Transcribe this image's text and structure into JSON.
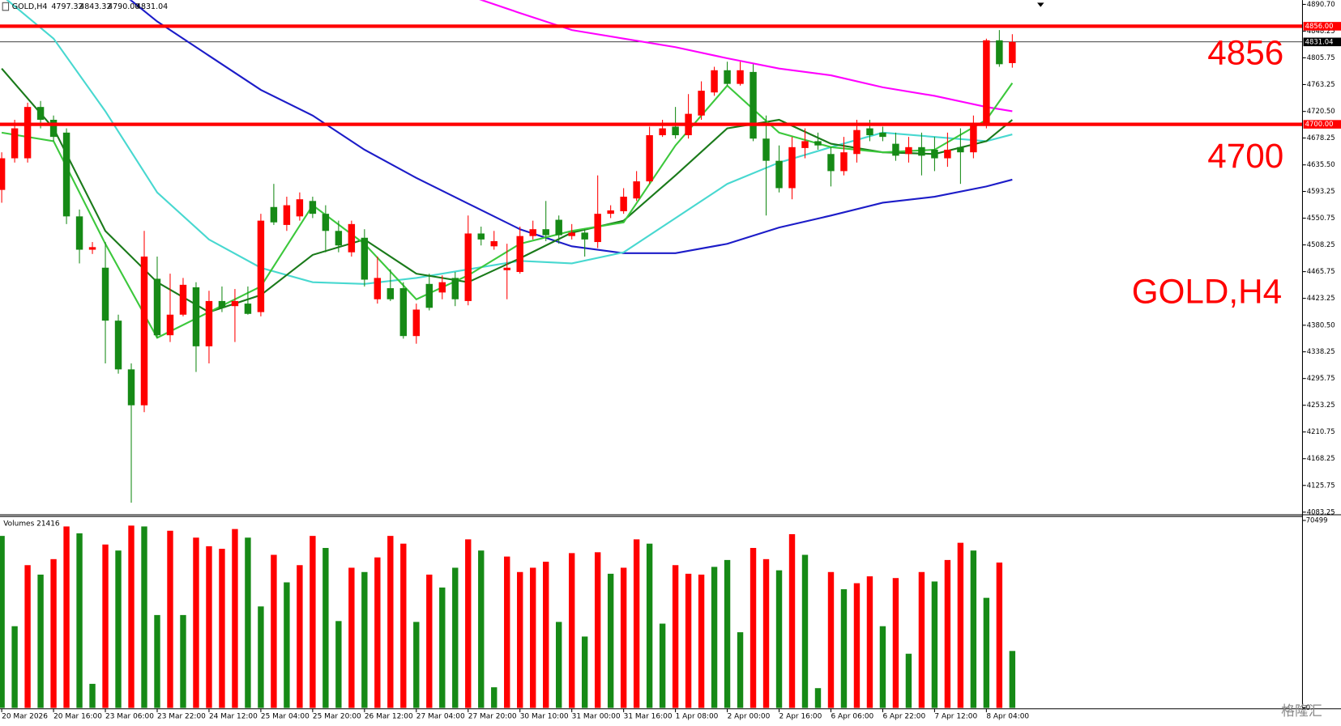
{
  "header": {
    "symbol": "GOLD,H4",
    "ohlc_labels": [
      "4797.32",
      "4843.32",
      "4790.00",
      "4831.04"
    ]
  },
  "chart_data": [
    {
      "type": "candlestick",
      "categories": [
        "20 Mar 2026",
        null,
        null,
        null,
        "20 Mar 16:00",
        null,
        null,
        null,
        "23 Mar 06:00",
        null,
        null,
        null,
        "23 Mar 22:00",
        null,
        null,
        null,
        "24 Mar 12:00",
        null,
        null,
        null,
        "25 Mar 04:00",
        null,
        null,
        null,
        "25 Mar 20:00",
        null,
        null,
        null,
        "26 Mar 12:00",
        null,
        null,
        null,
        "27 Mar 04:00",
        null,
        null,
        null,
        "27 Mar 20:00",
        null,
        null,
        null,
        "30 Mar 10:00",
        null,
        null,
        null,
        "31 Mar 00:00",
        null,
        null,
        null,
        "31 Mar 16:00",
        null,
        null,
        null,
        "1 Apr 08:00",
        null,
        null,
        null,
        "2 Apr 00:00",
        null,
        null,
        null,
        "2 Apr 16:00",
        null,
        null,
        null,
        "6 Apr 06:00",
        null,
        null,
        null,
        "6 Apr 22:00",
        null,
        null,
        null,
        "7 Apr 12:00",
        null,
        null,
        null,
        "8 Apr 04:00",
        null,
        null
      ],
      "open": [
        4595.7,
        4646.0,
        4646.0,
        4727.6,
        4707.2,
        4686.8,
        4553.6,
        4500.6,
        4472.0,
        4387.8,
        4310.3,
        4253.2,
        4454.4,
        4364.6,
        4397.3,
        4440.8,
        4347.0,
        4419.0,
        4410.9,
        4414.9,
        4401.4,
        4568.5,
        4540.0,
        4553.6,
        4578.1,
        4557.7,
        4530.5,
        4496.5,
        4519.6,
        4421.8,
        4439.4,
        4439.4,
        4363.3,
        4446.2,
        4432.6,
        4455.7,
        4419.0,
        4526.4,
        4506.0,
        4468.0,
        4465.2,
        4522.3,
        4533.2,
        4548.2,
        4522.3,
        4527.8,
        4512.8,
        4557.7,
        4561.8,
        4582.1,
        4609.3,
        4682.7,
        4696.3,
        4682.7,
        4714.0,
        4750.7,
        4786.0,
        4764.3,
        4783.3,
        4677.3,
        4642.0,
        4598.5,
        4662.3,
        4673.2,
        4652.8,
        4625.6,
        4652.8,
        4693.6,
        4686.8,
        4669.1,
        4652.8,
        4663.7,
        4659.6,
        4646.0,
        4663.7,
        4655.5,
        4700.4,
        4833.6,
        4797.32
      ],
      "high": [
        4655.5,
        4707.2,
        4734.4,
        4737.1,
        4714.0,
        4693.6,
        4564.5,
        4512.8,
        4512.8,
        4397.3,
        4319.8,
        4530.5,
        4489.7,
        4462.5,
        4455.7,
        4448.9,
        4435.3,
        4442.1,
        4438.1,
        4442.1,
        4557.7,
        4605.3,
        4584.9,
        4591.7,
        4584.9,
        4571.3,
        4546.8,
        4546.8,
        4533.2,
        4489.7,
        4469.3,
        4448.9,
        4414.9,
        4462.5,
        4459.8,
        4465.2,
        4555.0,
        4537.3,
        4530.5,
        4510.1,
        4537.3,
        4546.8,
        4578.1,
        4555.0,
        4541.4,
        4533.2,
        4618.8,
        4571.3,
        4598.5,
        4625.6,
        4696.3,
        4707.2,
        4727.6,
        4748.0,
        4768.4,
        4791.5,
        4799.6,
        4799.6,
        4795.6,
        4714.0,
        4666.4,
        4680.0,
        4693.6,
        4686.8,
        4663.7,
        4680.0,
        4707.2,
        4707.2,
        4696.3,
        4686.8,
        4680.0,
        4686.8,
        4680.0,
        4686.8,
        4693.6,
        4714.0,
        4836.3,
        4849.9,
        4843.32
      ],
      "low": [
        4575.3,
        4639.2,
        4639.2,
        4693.6,
        4673.2,
        4541.4,
        4478.8,
        4493.8,
        4319.8,
        4303.5,
        4098.2,
        4242.3,
        4360.6,
        4353.8,
        4394.6,
        4306.2,
        4319.8,
        4401.4,
        4353.8,
        4397.3,
        4394.6,
        4540.0,
        4530.5,
        4546.8,
        4550.9,
        4496.5,
        4496.5,
        4489.7,
        4442.1,
        4414.9,
        4419.0,
        4359.2,
        4351.1,
        4404.1,
        4421.8,
        4410.9,
        4412.2,
        4507.4,
        4500.6,
        4421.8,
        4462.5,
        4516.9,
        4514.2,
        4510.1,
        4516.9,
        4489.7,
        4503.3,
        4550.9,
        4557.7,
        4578.1,
        4605.3,
        4680.0,
        4677.3,
        4677.3,
        4707.2,
        4745.3,
        4761.6,
        4761.6,
        4673.2,
        4555.0,
        4591.7,
        4580.8,
        4646.0,
        4659.6,
        4601.2,
        4618.8,
        4639.2,
        4673.2,
        4673.2,
        4642.0,
        4639.2,
        4618.8,
        4625.6,
        4632.4,
        4605.3,
        4646.0,
        4693.6,
        4791.5,
        4790.0
      ],
      "close": [
        4646.0,
        4693.6,
        4727.6,
        4707.2,
        4680.0,
        4553.6,
        4500.6,
        4504.7,
        4387.8,
        4310.3,
        4253.2,
        4489.7,
        4364.6,
        4397.3,
        4444.8,
        4347.0,
        4419.0,
        4408.2,
        4419.0,
        4398.6,
        4546.8,
        4544.1,
        4571.3,
        4580.8,
        4557.7,
        4530.5,
        4507.4,
        4541.4,
        4453.0,
        4455.7,
        4421.8,
        4363.3,
        4405.4,
        4408.2,
        4448.9,
        4421.8,
        4526.4,
        4516.9,
        4514.2,
        4472.0,
        4522.3,
        4533.2,
        4523.7,
        4523.7,
        4527.8,
        4516.9,
        4557.7,
        4563.1,
        4584.9,
        4609.3,
        4682.7,
        4693.6,
        4682.7,
        4716.7,
        4753.4,
        4786.0,
        4764.3,
        4786.0,
        4677.3,
        4642.0,
        4598.5,
        4663.7,
        4673.2,
        4666.4,
        4625.6,
        4655.5,
        4690.9,
        4682.7,
        4680.0,
        4650.1,
        4663.7,
        4650.1,
        4646.0,
        4659.6,
        4655.5,
        4700.4,
        4833.6,
        4795.6,
        4831.04
      ],
      "up_color": "#ff0000",
      "down_color": "#168a16",
      "ylim": [
        4080.5,
        4897.5
      ],
      "yticks": [
        {
          "value": 4890.7,
          "label": "4890.70"
        },
        {
          "value": 4848.25,
          "label": "4848.25"
        },
        {
          "value": 4805.75,
          "label": "4805.75"
        },
        {
          "value": 4763.25,
          "label": "4763.25"
        },
        {
          "value": 4720.5,
          "label": "4720.50"
        },
        {
          "value": 4678.25,
          "label": "4678.25"
        },
        {
          "value": 4635.5,
          "label": "4635.50"
        },
        {
          "value": 4593.25,
          "label": "4593.25"
        },
        {
          "value": 4550.75,
          "label": "4550.75"
        },
        {
          "value": 4508.25,
          "label": "4508.25"
        },
        {
          "value": 4465.75,
          "label": "4465.75"
        },
        {
          "value": 4423.25,
          "label": "4423.25"
        },
        {
          "value": 4380.5,
          "label": "4380.50"
        },
        {
          "value": 4338.25,
          "label": "4338.25"
        },
        {
          "value": 4295.75,
          "label": "4295.75"
        },
        {
          "value": 4253.25,
          "label": "4253.25"
        },
        {
          "value": 4210.75,
          "label": "4210.75"
        },
        {
          "value": 4168.25,
          "label": "4168.25"
        },
        {
          "value": 4125.75,
          "label": "4125.75"
        },
        {
          "value": 4083.25,
          "label": "4083.25"
        }
      ],
      "lines": [
        {
          "color": "#ff00ff",
          "x": [
            36,
            40,
            44,
            48,
            52,
            56,
            60,
            64,
            68,
            72,
            76,
            78
          ],
          "values": [
            4905,
            4877,
            4849.9,
            4836.3,
            4822.7,
            4805,
            4788.7,
            4777.9,
            4758.8,
            4745.2,
            4727.6,
            4720.8
          ]
        },
        {
          "color": "#1c1cc8",
          "x": [
            8,
            12,
            16,
            20,
            24,
            28,
            32,
            36,
            40,
            44,
            48,
            52,
            56,
            60,
            64,
            68,
            72,
            76,
            78
          ],
          "values": [
            4930,
            4863.5,
            4809.1,
            4754.8,
            4714,
            4659.6,
            4614.8,
            4574,
            4533.2,
            4506,
            4495.1,
            4495.1,
            4510,
            4535.9,
            4554.9,
            4575.3,
            4584.8,
            4601.1,
            4612
          ]
        },
        {
          "color": "#48d8d0",
          "x": [
            0,
            4,
            8,
            12,
            16,
            20,
            24,
            28,
            32,
            36,
            40,
            44,
            48,
            52,
            56,
            60,
            64,
            68,
            72,
            76,
            78
          ],
          "values": [
            4905,
            4836.3,
            4720.8,
            4591.6,
            4516.9,
            4471.9,
            4448.9,
            4446.2,
            4455.7,
            4469.3,
            4482.9,
            4478.8,
            4496.5,
            4550.8,
            4605.2,
            4639.2,
            4663.7,
            4686.8,
            4680,
            4673.2,
            4684
          ]
        },
        {
          "color": "#1a7a1a",
          "x": [
            0,
            4,
            8,
            12,
            16,
            20,
            24,
            28,
            32,
            36,
            40,
            44,
            48,
            52,
            56,
            60,
            64,
            68,
            72,
            76,
            78
          ],
          "values": [
            4788.7,
            4693.6,
            4530.5,
            4448.9,
            4401.3,
            4428.5,
            4492.4,
            4516.9,
            4462.5,
            4448.9,
            4487,
            4527.8,
            4546.8,
            4618.8,
            4693.6,
            4707.2,
            4669.1,
            4655.5,
            4652.8,
            4673.2,
            4707.2
          ]
        },
        {
          "color": "#3cc83c",
          "x": [
            0,
            4,
            8,
            12,
            16,
            20,
            24,
            28,
            32,
            36,
            40,
            44,
            48,
            52,
            56,
            60,
            64,
            68,
            72,
            76,
            78
          ],
          "values": [
            4686.8,
            4673.2,
            4510,
            4360.6,
            4401.3,
            4442.1,
            4571.3,
            4510,
            4421.7,
            4459.8,
            4510,
            4530.5,
            4544.1,
            4666.4,
            4761.5,
            4686.8,
            4663.7,
            4655.5,
            4659.6,
            4707.2,
            4765.6
          ]
        }
      ],
      "levels": [
        {
          "value": 4856,
          "label": "4856",
          "axis_label": "4856.00",
          "color": "#ff0000"
        },
        {
          "value": 4700,
          "label": "4700",
          "axis_label": "4700.00",
          "color": "#ff0000"
        }
      ],
      "price_line": {
        "value": 4831.04,
        "label": "4831.04"
      },
      "annotation": "GOLD,H4"
    },
    {
      "type": "bar",
      "title": "Volumes",
      "values": [
        64680,
        30723,
        53684,
        50127,
        55948,
        68237,
        65650,
        9055,
        61446,
        59182,
        68561,
        68237,
        34927,
        66620,
        34927,
        64033,
        60799,
        59829,
        67267,
        64033,
        38161,
        57565,
        47216,
        53684,
        64680,
        60152,
        32663,
        52714,
        51097,
        56595,
        64680,
        61769,
        32340,
        50127,
        45276,
        52714,
        63386,
        59182,
        7762,
        56918,
        51097,
        52714,
        54978,
        32340,
        58212,
        26842,
        58535,
        50450,
        52714,
        63386,
        61769,
        31693,
        53684,
        50450,
        50127,
        53038,
        55625,
        28459,
        60152,
        55948,
        51744,
        65327,
        57565,
        7438,
        51097,
        44629,
        46893,
        49480,
        30723,
        48833,
        20374,
        51097,
        47540,
        55625,
        62093,
        59182,
        41395,
        54655,
        21416
      ],
      "colors": [
        "#168a16",
        "#168a16",
        "#ff0000",
        "#168a16",
        "#ff0000",
        "#ff0000",
        "#168a16",
        "#168a16",
        "#ff0000",
        "#168a16",
        "#ff0000",
        "#168a16",
        "#168a16",
        "#ff0000",
        "#168a16",
        "#ff0000",
        "#ff0000",
        "#ff0000",
        "#ff0000",
        "#168a16",
        "#168a16",
        "#ff0000",
        "#168a16",
        "#ff0000",
        "#ff0000",
        "#168a16",
        "#168a16",
        "#ff0000",
        "#168a16",
        "#ff0000",
        "#ff0000",
        "#ff0000",
        "#168a16",
        "#ff0000",
        "#168a16",
        "#168a16",
        "#ff0000",
        "#168a16",
        "#168a16",
        "#ff0000",
        "#ff0000",
        "#ff0000",
        "#ff0000",
        "#168a16",
        "#ff0000",
        "#168a16",
        "#ff0000",
        "#168a16",
        "#ff0000",
        "#ff0000",
        "#168a16",
        "#168a16",
        "#ff0000",
        "#ff0000",
        "#ff0000",
        "#168a16",
        "#168a16",
        "#168a16",
        "#ff0000",
        "#ff0000",
        "#168a16",
        "#ff0000",
        "#168a16",
        "#168a16",
        "#ff0000",
        "#168a16",
        "#ff0000",
        "#ff0000",
        "#168a16",
        "#ff0000",
        "#168a16",
        "#ff0000",
        "#168a16",
        "#ff0000",
        "#ff0000",
        "#168a16",
        "#168a16",
        "#ff0000",
        "#168a16"
      ],
      "ylim": [
        0,
        72000
      ],
      "yticks": [
        70499,
        0
      ]
    }
  ],
  "watermark": "格隆汇"
}
